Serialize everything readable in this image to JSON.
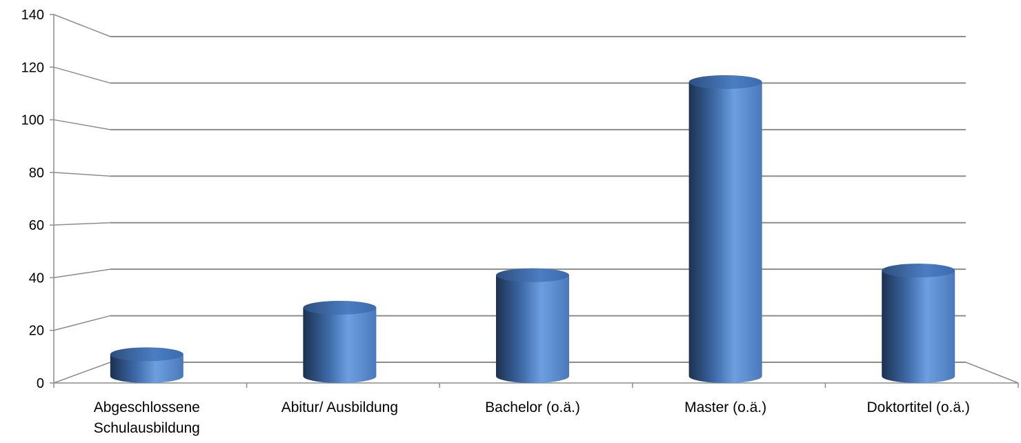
{
  "chart_data": {
    "type": "bar",
    "style": "3d-cylinder",
    "categories": [
      [
        "Abgeschlossene",
        "Schulausbildung"
      ],
      [
        "Abitur/ Ausbildung"
      ],
      [
        "Bachelor (o.ä.)"
      ],
      [
        "Master (o.ä.)"
      ],
      [
        "Doktortitel (o.ä.)"
      ]
    ],
    "values": [
      7,
      27,
      41,
      124,
      43
    ],
    "ylim": [
      0,
      140
    ],
    "yticks": [
      "0",
      "20",
      "40",
      "60",
      "80",
      "100",
      "120",
      "140"
    ],
    "grid": true,
    "legend": "none",
    "colors": {
      "bar_dark": "#1c3150",
      "bar_mid": "#3d6aa8",
      "bar_light": "#6d9fe0",
      "bar_top": "#3b6baf",
      "grid": "#8c8c8c"
    }
  }
}
